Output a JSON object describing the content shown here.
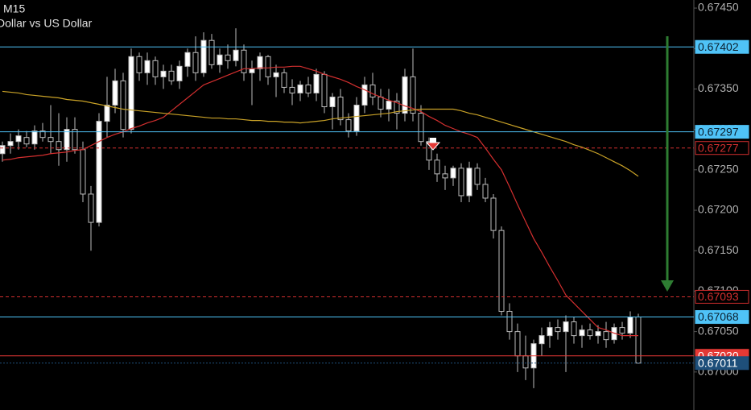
{
  "chart_data": {
    "type": "candlestick",
    "title": "M15",
    "subtitle": "Dollar vs US Dollar",
    "ylim": [
      0.66953,
      0.6746
    ],
    "yticks": [
      {
        "value": 0.6745,
        "label": "0.67450"
      },
      {
        "value": 0.674,
        "label": "0.67400"
      },
      {
        "value": 0.6735,
        "label": "0.67350"
      },
      {
        "value": 0.673,
        "label": "0.67300"
      },
      {
        "value": 0.6725,
        "label": "0.67250"
      },
      {
        "value": 0.672,
        "label": "0.67200"
      },
      {
        "value": 0.6715,
        "label": "0.67150"
      },
      {
        "value": 0.671,
        "label": "0.67100"
      },
      {
        "value": 0.6705,
        "label": "0.67050"
      },
      {
        "value": 0.67,
        "label": "0.67000"
      }
    ],
    "up_color": "#ffffff",
    "down_color": "#000000",
    "wick_color": "#bdbdbd",
    "open": [
      0.6727,
      0.6728,
      0.67285,
      0.6729,
      0.67282,
      0.67298,
      0.6729,
      0.67285,
      0.67275,
      0.673,
      0.67275,
      0.6722,
      0.67185,
      0.6731,
      0.6733,
      0.6736,
      0.673,
      0.6739,
      0.6737,
      0.67385,
      0.67365,
      0.67372,
      0.6736,
      0.67378,
      0.67395,
      0.6737,
      0.6741,
      0.6738,
      0.67392,
      0.67385,
      0.67398,
      0.6737,
      0.67375,
      0.6739,
      0.67365,
      0.6737,
      0.67352,
      0.67345,
      0.67355,
      0.67345,
      0.67368,
      0.67328,
      0.6734,
      0.67312,
      0.67298,
      0.6733,
      0.67355,
      0.6734,
      0.67325,
      0.67335,
      0.6732,
      0.67365,
      0.6732,
      0.67285,
      0.67262,
      0.67245,
      0.6724,
      0.67252,
      0.67218,
      0.67252,
      0.67232,
      0.67215,
      0.67175,
      0.67075,
      0.6705,
      0.6702,
      0.67005,
      0.67035,
      0.67045,
      0.67055,
      0.6705,
      0.67062,
      0.67045,
      0.67052,
      0.67045,
      0.6705,
      0.6704,
      0.67055,
      0.67048,
      0.67068
    ],
    "high": [
      0.67285,
      0.67295,
      0.673,
      0.67298,
      0.67305,
      0.67308,
      0.6733,
      0.6732,
      0.67315,
      0.67315,
      0.67285,
      0.6723,
      0.6732,
      0.67365,
      0.67375,
      0.6737,
      0.674,
      0.67395,
      0.67395,
      0.6739,
      0.6738,
      0.6738,
      0.67385,
      0.674,
      0.67415,
      0.6742,
      0.67418,
      0.674,
      0.67405,
      0.67425,
      0.67405,
      0.67385,
      0.67395,
      0.67392,
      0.6738,
      0.67375,
      0.67362,
      0.6736,
      0.67365,
      0.67375,
      0.67372,
      0.67345,
      0.6735,
      0.6732,
      0.6734,
      0.67365,
      0.6737,
      0.6735,
      0.6735,
      0.67345,
      0.67375,
      0.674,
      0.6733,
      0.6729,
      0.6727,
      0.67255,
      0.67255,
      0.67258,
      0.6726,
      0.67258,
      0.6724,
      0.6722,
      0.6718,
      0.67085,
      0.6706,
      0.67045,
      0.6704,
      0.67055,
      0.67062,
      0.67065,
      0.6707,
      0.67068,
      0.67058,
      0.6706,
      0.67058,
      0.67062,
      0.6706,
      0.67062,
      0.67075,
      0.67072
    ],
    "low": [
      0.6726,
      0.6727,
      0.67275,
      0.67278,
      0.67275,
      0.67285,
      0.6727,
      0.67255,
      0.6726,
      0.6727,
      0.6721,
      0.6715,
      0.6718,
      0.6729,
      0.6732,
      0.6729,
      0.67295,
      0.6736,
      0.67355,
      0.67355,
      0.6735,
      0.67355,
      0.6735,
      0.67365,
      0.6736,
      0.67365,
      0.67375,
      0.6737,
      0.67375,
      0.67378,
      0.6736,
      0.6733,
      0.6736,
      0.67355,
      0.6734,
      0.67345,
      0.6733,
      0.67335,
      0.6734,
      0.67335,
      0.6732,
      0.673,
      0.67305,
      0.6729,
      0.67292,
      0.6732,
      0.6733,
      0.67315,
      0.6731,
      0.673,
      0.6731,
      0.6731,
      0.6728,
      0.6725,
      0.67235,
      0.67225,
      0.6723,
      0.6721,
      0.6721,
      0.67225,
      0.6721,
      0.67165,
      0.6707,
      0.6704,
      0.67,
      0.6699,
      0.6698,
      0.6702,
      0.6703,
      0.6704,
      0.67,
      0.67035,
      0.6703,
      0.6704,
      0.67035,
      0.6703,
      0.67035,
      0.6704,
      0.67042,
      0.6701
    ],
    "close": [
      0.6728,
      0.67285,
      0.67292,
      0.67282,
      0.67298,
      0.6729,
      0.67285,
      0.67275,
      0.673,
      0.67275,
      0.6722,
      0.67185,
      0.6731,
      0.6733,
      0.6736,
      0.673,
      0.6739,
      0.6737,
      0.67385,
      0.67365,
      0.67372,
      0.6736,
      0.67378,
      0.67395,
      0.6737,
      0.6741,
      0.6738,
      0.67392,
      0.67385,
      0.67398,
      0.6737,
      0.67375,
      0.6739,
      0.67365,
      0.6737,
      0.67352,
      0.67345,
      0.67355,
      0.67345,
      0.67368,
      0.67328,
      0.6734,
      0.67312,
      0.67298,
      0.6733,
      0.67355,
      0.6734,
      0.67325,
      0.67335,
      0.6732,
      0.67365,
      0.6732,
      0.67285,
      0.67262,
      0.67245,
      0.6724,
      0.67252,
      0.67218,
      0.67252,
      0.67232,
      0.67215,
      0.67175,
      0.67075,
      0.6705,
      0.6702,
      0.67005,
      0.67035,
      0.67045,
      0.67055,
      0.6705,
      0.67062,
      0.67045,
      0.67052,
      0.67045,
      0.6705,
      0.6704,
      0.67055,
      0.67048,
      0.67068,
      0.67011
    ],
    "overlays": [
      {
        "color": "#d32f2f",
        "values": [
          0.67262,
          0.67263,
          0.67265,
          0.67266,
          0.67267,
          0.67268,
          0.6727,
          0.67271,
          0.67272,
          0.67274,
          0.67275,
          0.6728,
          0.67285,
          0.6729,
          0.67294,
          0.67297,
          0.67301,
          0.67304,
          0.67308,
          0.67311,
          0.67315,
          0.67323,
          0.67331,
          0.67339,
          0.67347,
          0.67355,
          0.67359,
          0.67363,
          0.67367,
          0.67371,
          0.67375,
          0.67375,
          0.67376,
          0.67376,
          0.67377,
          0.67377,
          0.67378,
          0.67378,
          0.67375,
          0.67372,
          0.67368,
          0.67365,
          0.67362,
          0.67358,
          0.67353,
          0.67349,
          0.67344,
          0.6734,
          0.67336,
          0.67333,
          0.67329,
          0.67326,
          0.67322,
          0.67316,
          0.67311,
          0.67305,
          0.67301,
          0.67297,
          0.67294,
          0.6729,
          0.67277,
          0.67263,
          0.6725,
          0.67229,
          0.67207,
          0.67186,
          0.67165,
          0.67148,
          0.6713,
          0.67113,
          0.67095,
          0.67085,
          0.67075,
          0.67065,
          0.67055,
          0.67052,
          0.67048,
          0.67045,
          0.67045,
          0.67045
        ]
      },
      {
        "color": "#c9a227",
        "values": [
          0.67347,
          0.67346,
          0.67345,
          0.67343,
          0.67342,
          0.67341,
          0.6734,
          0.67339,
          0.67337,
          0.67336,
          0.67335,
          0.67333,
          0.67331,
          0.67329,
          0.67327,
          0.67325,
          0.67324,
          0.67323,
          0.67322,
          0.67321,
          0.6732,
          0.67319,
          0.67318,
          0.67317,
          0.67316,
          0.67315,
          0.67314,
          0.67314,
          0.67313,
          0.67313,
          0.67312,
          0.67311,
          0.67311,
          0.6731,
          0.6731,
          0.67309,
          0.67309,
          0.67308,
          0.67309,
          0.6731,
          0.67311,
          0.67313,
          0.67314,
          0.67315,
          0.67316,
          0.67317,
          0.67318,
          0.67319,
          0.6732,
          0.67322,
          0.67323,
          0.67324,
          0.67325,
          0.67325,
          0.67325,
          0.67325,
          0.67325,
          0.67323,
          0.6732,
          0.67318,
          0.67315,
          0.67312,
          0.67309,
          0.67306,
          0.67303,
          0.673,
          0.67297,
          0.67294,
          0.67291,
          0.67288,
          0.67285,
          0.67281,
          0.67278,
          0.67274,
          0.6727,
          0.67265,
          0.6726,
          0.67255,
          0.67249,
          0.67242
        ]
      }
    ],
    "levels": [
      {
        "value": 0.67402,
        "label": "0.67402",
        "color": "#4fc3f7",
        "style": "solid",
        "box": "filled"
      },
      {
        "value": 0.67297,
        "label": "0.67297",
        "color": "#4fc3f7",
        "style": "solid",
        "box": "filled"
      },
      {
        "value": 0.67277,
        "label": "0.67277",
        "color": "#d32f2f",
        "style": "dashed",
        "box": "outline"
      },
      {
        "value": 0.67093,
        "label": "0.67093",
        "color": "#d32f2f",
        "style": "dashed",
        "box": "outline"
      },
      {
        "value": 0.67068,
        "label": "0.67068",
        "color": "#4fc3f7",
        "style": "solid",
        "box": "filled"
      },
      {
        "value": 0.6702,
        "label": "0.67020",
        "color": "#e53935",
        "style": "solid",
        "box": "filled"
      },
      {
        "value": 0.67011,
        "label": "0.67011",
        "color": "#1e4f7a",
        "style": "dotted",
        "box": "filled"
      }
    ]
  }
}
